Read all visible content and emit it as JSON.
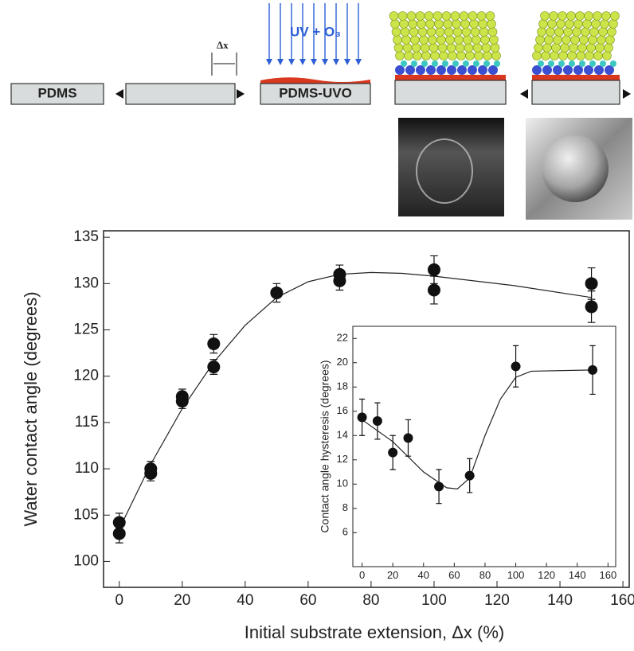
{
  "schematic": {
    "pdms": "PDMS",
    "dx": "Δx",
    "uv": "UV + O₃",
    "pdms_uvo": "PDMS-UVO"
  },
  "chart_data": [
    {
      "type": "scatter",
      "xlabel": "Initial substrate extension, Δx   (%)",
      "ylabel": "Water contact angle  (degrees)",
      "xlim": [
        -5,
        162
      ],
      "xticks": [
        0,
        20,
        40,
        60,
        80,
        100,
        120,
        140,
        160
      ],
      "ylim": [
        97.2,
        135.7
      ],
      "yticks": [
        100,
        105,
        110,
        115,
        120,
        125,
        130,
        135
      ],
      "color": "#111",
      "x": [
        0,
        0,
        10,
        10,
        20,
        20,
        30,
        30,
        50,
        70,
        70,
        100,
        100,
        150,
        150
      ],
      "values": [
        104.2,
        103.0,
        110.0,
        109.5,
        117.8,
        117.3,
        123.5,
        121.0,
        129.0,
        131.0,
        130.3,
        131.5,
        129.3,
        130.0,
        127.5
      ],
      "errors": [
        1.0,
        1.0,
        0.8,
        0.8,
        0.8,
        0.8,
        1.0,
        0.8,
        1.0,
        1.0,
        1.0,
        1.5,
        1.5,
        1.7,
        1.7
      ],
      "fit": {
        "x": [
          0,
          10,
          20,
          30,
          40,
          50,
          60,
          70,
          80,
          90,
          100,
          125,
          150
        ],
        "values": [
          103.5,
          110.5,
          116.5,
          121.5,
          125.5,
          128.5,
          130.2,
          131.0,
          131.2,
          131.1,
          130.8,
          129.8,
          128.5
        ]
      }
    },
    {
      "type": "scatter",
      "ylabel": "Contact angle hysteresis   (degrees)",
      "xlim": [
        -6,
        165
      ],
      "xticks": [
        0,
        20,
        40,
        60,
        80,
        100,
        120,
        140,
        160
      ],
      "ylim": [
        3.2,
        23
      ],
      "yticks": [
        6,
        8,
        10,
        12,
        14,
        16,
        18,
        20,
        22
      ],
      "color": "#111",
      "x": [
        0,
        10,
        20,
        30,
        50,
        70,
        100,
        150
      ],
      "values": [
        15.5,
        15.2,
        12.6,
        13.8,
        9.8,
        10.7,
        19.7,
        19.4
      ],
      "errors": [
        1.5,
        1.5,
        1.4,
        1.5,
        1.4,
        1.4,
        1.7,
        2.0
      ],
      "fit": {
        "x": [
          0,
          20,
          40,
          55,
          62,
          70,
          80,
          90,
          100,
          110,
          150
        ],
        "values": [
          15.3,
          13.5,
          11.0,
          9.7,
          9.6,
          10.5,
          14.0,
          17.0,
          18.8,
          19.3,
          19.4
        ]
      }
    }
  ]
}
